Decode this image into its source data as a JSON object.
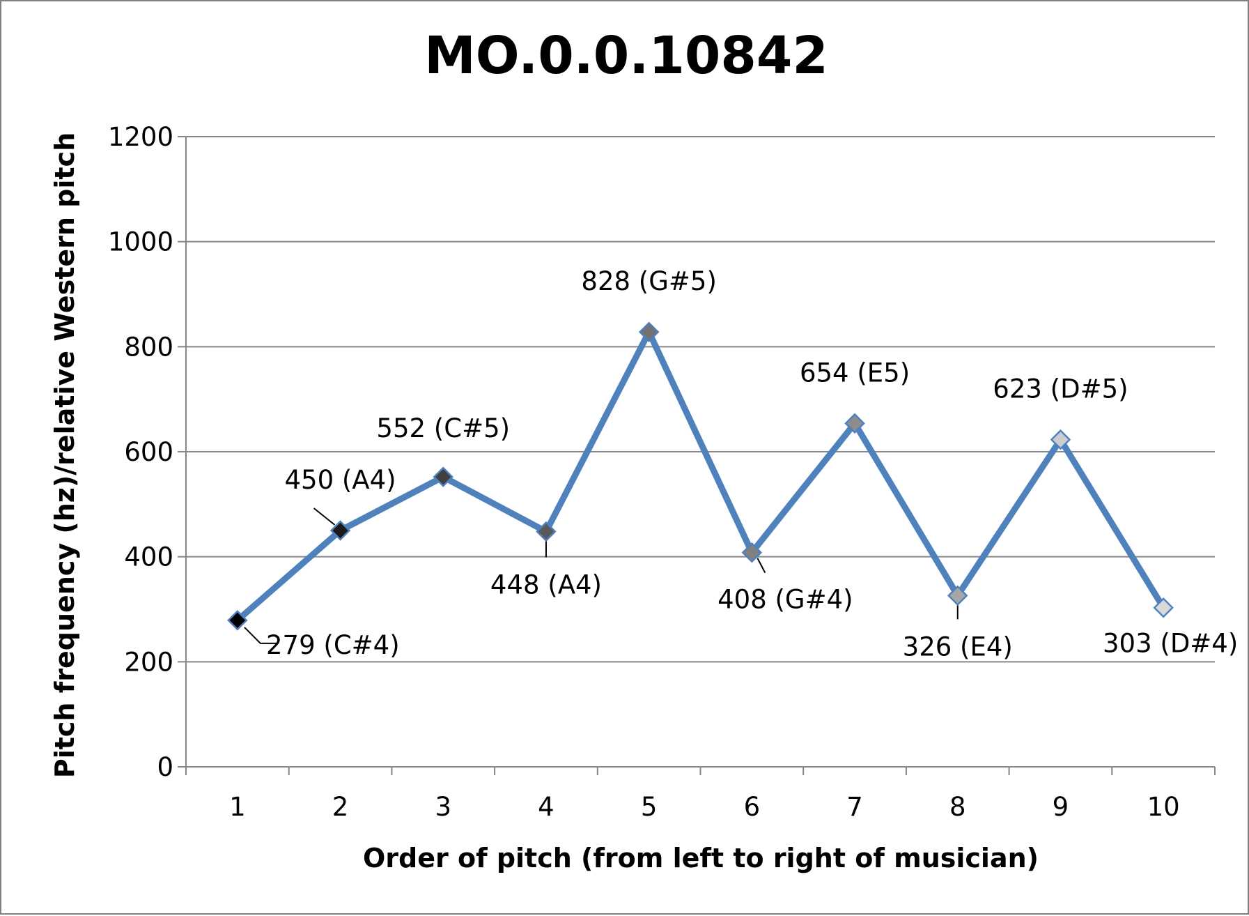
{
  "chart_data": {
    "type": "line",
    "title": "MO.0.0.10842",
    "xlabel": "Order of pitch (from left to right of musician)",
    "ylabel": "Pitch frequency (hz)/relative Western pitch",
    "ylim": [
      0,
      1200
    ],
    "yticks": [
      "0",
      "200",
      "400",
      "600",
      "800",
      "1000",
      "1200"
    ],
    "x": [
      "1",
      "2",
      "3",
      "4",
      "5",
      "6",
      "7",
      "8",
      "9",
      "10"
    ],
    "values": [
      279,
      450,
      552,
      448,
      828,
      408,
      654,
      326,
      623,
      303
    ],
    "data_labels": [
      "279 (C#4)",
      "450 (A4)",
      "552 (C#5)",
      "448 (A4)",
      "828 (G#5)",
      "408 (G#4)",
      "654 (E5)",
      "326 (E4)",
      "623 (D#5)",
      "303 (D#4)"
    ],
    "line_color": "#4f81bd",
    "marker_colors": [
      "#000000",
      "#1a1a1a",
      "#404040",
      "#595959",
      "#737373",
      "#808080",
      "#8c8c8c",
      "#a6a6a6",
      "#cccccc",
      "#d9d9d9"
    ],
    "grid": true,
    "legend": "none"
  }
}
